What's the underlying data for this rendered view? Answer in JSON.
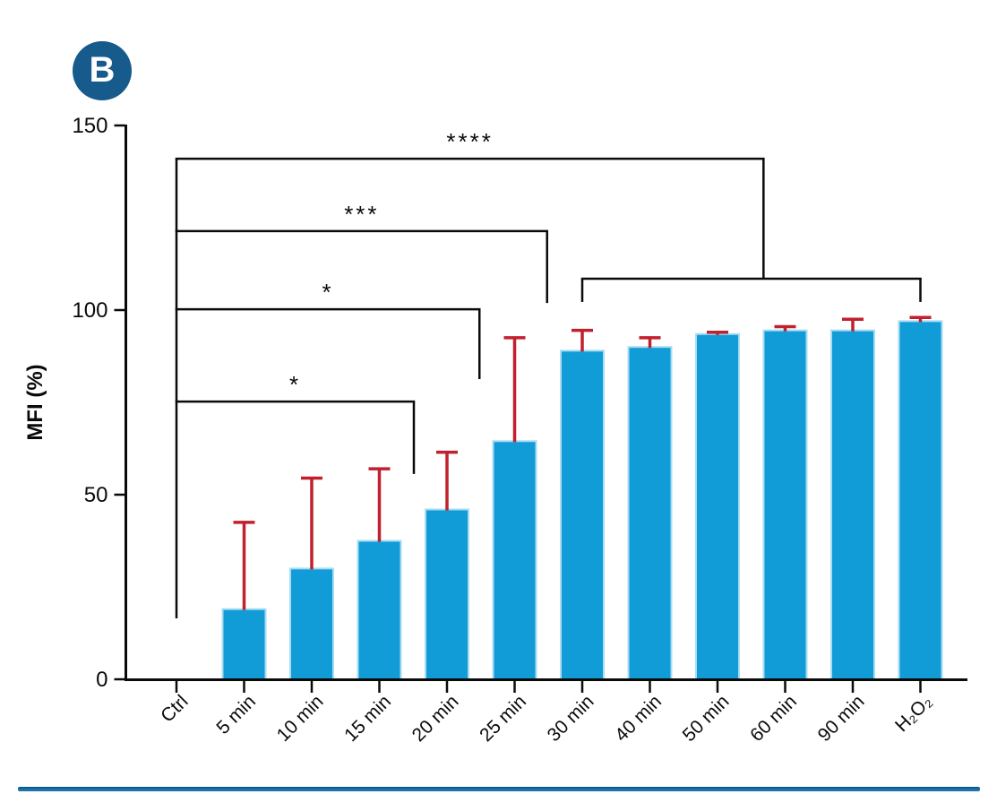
{
  "panel_label": "B",
  "colors": {
    "badge": "#175a8c",
    "bar_fill": "#119bd7",
    "bar_edge": "#a8dcf3",
    "error_bar": "#c1202e",
    "axis": "#0a0a0a",
    "divider": "#1a74b0"
  },
  "chart_data": {
    "type": "bar",
    "title": "",
    "panel": "B",
    "xlabel": "",
    "ylabel": "MFI (%)",
    "ylim": [
      0,
      150
    ],
    "yticks": [
      0,
      50,
      100,
      150
    ],
    "grid": false,
    "legend": "none",
    "categories": [
      "Ctrl",
      "5 min",
      "10 min",
      "15 min",
      "20 min",
      "25 min",
      "30 min",
      "40 min",
      "50 min",
      "60 min",
      "90 min",
      "H₂O₂"
    ],
    "values": [
      0,
      19,
      30,
      37.5,
      46,
      64.5,
      89,
      90,
      93.5,
      94.5,
      94.5,
      97
    ],
    "errors_upper": [
      0,
      23.5,
      24.5,
      19.5,
      15.5,
      28,
      5.5,
      2.5,
      0.5,
      1,
      3,
      1
    ],
    "bar_color": "#119bd7",
    "bar_edge_color": "#a8dcf3",
    "error_color": "#c1202e",
    "significance": [
      {
        "stars": "*",
        "from": "Ctrl",
        "to_index": 3.51,
        "bar_y": 75.2,
        "right_drop_y": 55.6
      },
      {
        "stars": "*",
        "from": "Ctrl",
        "to_index": 4.48,
        "bar_y": 100.2,
        "right_drop_y": 81.3
      },
      {
        "stars": "***",
        "from": "Ctrl",
        "to_index": 5.48,
        "bar_y": 121.4,
        "right_drop_y": 101.9
      },
      {
        "stars": "****",
        "from": "Ctrl",
        "to_index": 8.68,
        "bar_y": 141.0,
        "right_drop_y": 108.5,
        "group": {
          "from": "30 min",
          "to": "H₂O₂",
          "bar_y": 108.5,
          "tick_drop_y": 102.2
        }
      }
    ],
    "left_tail_drop_y": 16.5
  }
}
